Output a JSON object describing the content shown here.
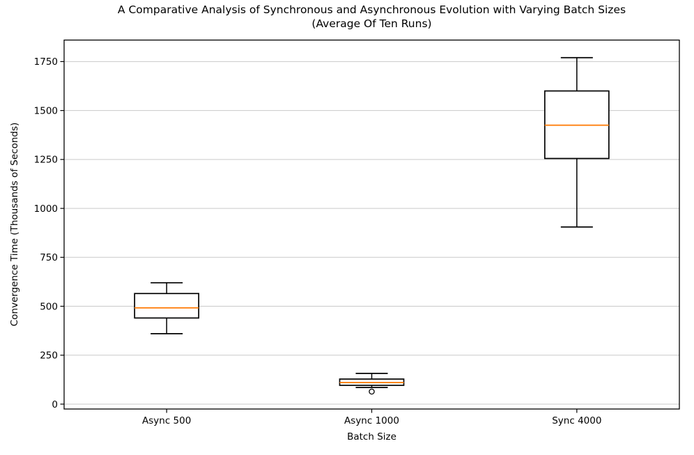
{
  "chart_data": {
    "type": "box",
    "title": "A Comparative Analysis of Synchronous and Asynchronous Evolution with Varying Batch Sizes",
    "subtitle": "(Average Of Ten Runs)",
    "xlabel": "Batch Size",
    "ylabel": "Convergence Time (Thousands of Seconds)",
    "categories": [
      "Async 500",
      "Async 1000",
      "Sync 4000"
    ],
    "boxes": [
      {
        "label": "Async 500",
        "whislo": 360,
        "q1": 440,
        "med": 492,
        "q3": 565,
        "whishi": 620,
        "fliers": []
      },
      {
        "label": "Async 1000",
        "whislo": 85,
        "q1": 96,
        "med": 110,
        "q3": 128,
        "whishi": 157,
        "fliers": [
          64
        ]
      },
      {
        "label": "Sync 4000",
        "whislo": 905,
        "q1": 1255,
        "med": 1425,
        "q3": 1600,
        "whishi": 1770,
        "fliers": []
      }
    ],
    "yticks": [
      0,
      250,
      500,
      750,
      1000,
      1250,
      1500,
      1750
    ],
    "ylim": [
      -25,
      1860
    ],
    "grid": "horizontal",
    "legend": "none",
    "colors": {
      "median": "#ff7f0e",
      "box_edge": "#000000",
      "grid": "#c9c9c9",
      "spine": "#000000",
      "background": "#ffffff"
    }
  }
}
